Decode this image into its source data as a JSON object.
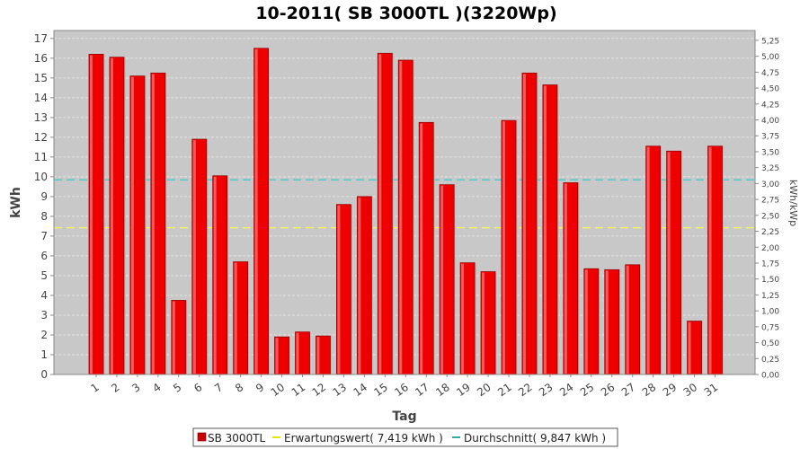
{
  "chart_data": {
    "type": "bar",
    "title": "10-2011( SB 3000TL )(3220Wp)",
    "xlabel": "Tag",
    "ylabel": "kWh",
    "y2label": "kWh/kWp",
    "ylim": [
      0,
      17.4
    ],
    "y2lim": [
      0,
      5.404
    ],
    "yticks": [
      0,
      1,
      2,
      3,
      4,
      5,
      6,
      7,
      8,
      9,
      10,
      11,
      12,
      13,
      14,
      15,
      16,
      17
    ],
    "y2ticks": [
      "0,00",
      "0,25",
      "0,50",
      "0,75",
      "1,00",
      "1,25",
      "1,50",
      "1,75",
      "2,00",
      "2,25",
      "2,50",
      "2,75",
      "3,00",
      "3,25",
      "3,50",
      "3,75",
      "4,00",
      "4,25",
      "4,50",
      "4,75",
      "5,00",
      "5,25"
    ],
    "categories": [
      "1",
      "2",
      "3",
      "4",
      "5",
      "6",
      "7",
      "8",
      "9",
      "10",
      "11",
      "12",
      "13",
      "14",
      "15",
      "16",
      "17",
      "18",
      "19",
      "20",
      "21",
      "22",
      "23",
      "24",
      "25",
      "26",
      "27",
      "28",
      "29",
      "30",
      "31"
    ],
    "series": [
      {
        "name": "SB 3000TL",
        "color": "#ee0000",
        "values": [
          16.2,
          16.05,
          15.1,
          15.25,
          3.75,
          11.9,
          10.05,
          5.7,
          16.5,
          1.9,
          2.15,
          1.95,
          8.6,
          9.0,
          16.25,
          15.9,
          12.75,
          9.6,
          5.65,
          5.2,
          12.85,
          15.25,
          14.65,
          9.7,
          5.35,
          5.3,
          5.55,
          11.55,
          11.3,
          2.7,
          11.55
        ]
      }
    ],
    "reference_lines": [
      {
        "name": "Erwartungswert",
        "value": 7.419,
        "color": "#ffff44"
      },
      {
        "name": "Durchschnitt",
        "value": 9.847,
        "color": "#33cccc"
      }
    ],
    "grid": true,
    "legend_position": "bottom",
    "colors": {
      "plot_background": "#c8c8c8",
      "grid": "#e4e4e4",
      "bar": "#ee0000"
    }
  },
  "legend": {
    "items": [
      {
        "label": "SB 3000TL",
        "color": "#cc0000"
      },
      {
        "label": "Erwartungswert( 7,419 kWh )",
        "color": "#e6e600"
      },
      {
        "label": "Durchschnitt( 9,847 kWh )",
        "color": "#33aaaa"
      }
    ]
  }
}
